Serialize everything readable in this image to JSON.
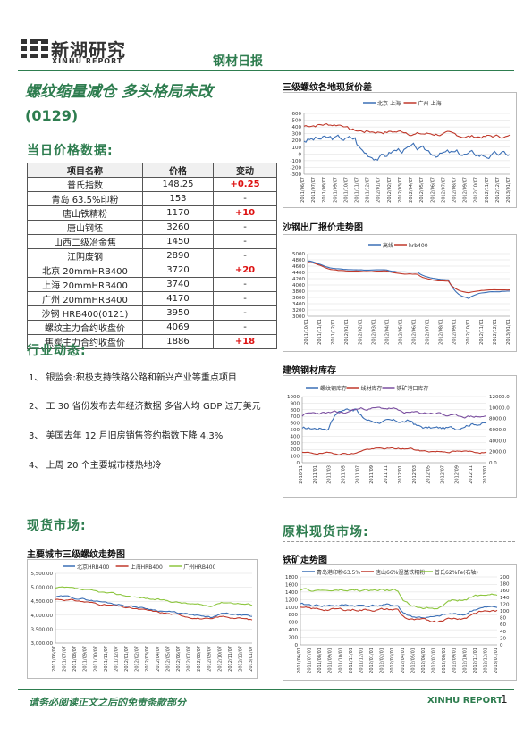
{
  "header": {
    "brand_cn": "新湖研究",
    "brand_en": "XINHU REPORT",
    "report_type": "钢材日报"
  },
  "title": {
    "main": "螺纹缩量减仓  多头格局未改",
    "date": "(0129)"
  },
  "price_section": {
    "heading": "当日价格数据:",
    "columns": [
      "项目名称",
      "价格",
      "变动"
    ],
    "rows": [
      {
        "name": "普氏指数",
        "price": "148.25",
        "change": "+0.25",
        "highlight": true
      },
      {
        "name": "青岛 63.5%印粉",
        "price": "153",
        "change": "-",
        "highlight": false
      },
      {
        "name": "唐山铁精粉",
        "price": "1170",
        "change": "+10",
        "highlight": true
      },
      {
        "name": "唐山钢坯",
        "price": "3260",
        "change": "-",
        "highlight": false
      },
      {
        "name": "山西二级冶金焦",
        "price": "1450",
        "change": "-",
        "highlight": false
      },
      {
        "name": "江阴废钢",
        "price": "2890",
        "change": "-",
        "highlight": false
      },
      {
        "name": "北京 20mmHRB400",
        "price": "3720",
        "change": "+20",
        "highlight": true
      },
      {
        "name": "上海 20mmHRB400",
        "price": "3740",
        "change": "-",
        "highlight": false
      },
      {
        "name": "广州 20mmHRB400",
        "price": "4170",
        "change": "-",
        "highlight": false
      },
      {
        "name": "沙钢 HRB400(0121)",
        "price": "3950",
        "change": "-",
        "highlight": false
      },
      {
        "name": "螺纹主力合约收盘价",
        "price": "4069",
        "change": "-",
        "highlight": false
      },
      {
        "name": "焦炭主力合约收盘价",
        "price": "1886",
        "change": "+18",
        "highlight": true
      }
    ]
  },
  "industry": {
    "heading": "行业动态:",
    "items": [
      "1、 银监会:积极支持铁路公路和新兴产业等重点项目",
      "2、 工 30 省份发布去年经济数据  多省人均 GDP 过万美元",
      "3、 美国去年 12 月旧房销售签约指数下降 4.3%",
      "4、 上周 20 个主要城市楼热地冷"
    ]
  },
  "spot_section": {
    "heading": "现货市场:",
    "chart_title": "主要城市三级螺纹走势图"
  },
  "raw_section": {
    "heading": "原料现货市场:",
    "chart_title": "铁矿走势图"
  },
  "footer": {
    "disclaimer": "请务必阅读正文之后的免责条款部分",
    "brand": "XINHU REPORT",
    "page": "1"
  },
  "chart_data": [
    {
      "type": "line",
      "title": "三级螺纹各地现货价差",
      "series": [
        {
          "name": "北京-上海",
          "color": "#3b6fb6"
        },
        {
          "name": "广州-上海",
          "color": "#c0392b"
        }
      ],
      "ylim": [
        -300,
        600
      ],
      "yticks": [
        "600",
        "500",
        "400",
        "300",
        "200",
        "100",
        "0",
        "-100",
        "-200",
        "-300"
      ],
      "xticks": [
        "2011/06/07",
        "2011/07/07",
        "2011/08/07",
        "2011/09/07",
        "2011/10/07",
        "2011/11/07",
        "2011/12/07",
        "2012/01/07",
        "2012/02/07",
        "2012/03/07",
        "2012/04/07",
        "2012/05/07",
        "2012/06/07",
        "2012/07/07",
        "2012/08/07",
        "2012/09/07",
        "2012/10/07",
        "2012/11/07",
        "2012/12/07",
        "2013/01/07"
      ]
    },
    {
      "type": "line",
      "title": "沙钢出厂报价走势图",
      "series": [
        {
          "name": "高线",
          "color": "#3b6fb6"
        },
        {
          "name": "hrb400",
          "color": "#c0392b"
        }
      ],
      "ylim": [
        3000,
        5000
      ],
      "yticks": [
        "5000",
        "4800",
        "4600",
        "4400",
        "4200",
        "4000",
        "3800",
        "3600",
        "3400",
        "3200",
        "3000"
      ],
      "xticks": [
        "2011/10/01",
        "2011/11/01",
        "2011/12/01",
        "2012/01/01",
        "2012/02/01",
        "2012/03/01",
        "2012/04/01",
        "2012/05/01",
        "2012/06/01",
        "2012/07/01",
        "2012/08/01",
        "2012/09/01",
        "2012/10/01",
        "2012/11/01",
        "2012/12/01",
        "2013/01/01"
      ]
    },
    {
      "type": "line",
      "title": "建筑钢材库存",
      "series": [
        {
          "name": "螺纹钢库存",
          "color": "#3b6fb6"
        },
        {
          "name": "线材库存",
          "color": "#c0392b"
        },
        {
          "name": "铁矿港口库存",
          "color": "#7b4fa0"
        }
      ],
      "ylim_left": [
        0,
        1000
      ],
      "ylim_right": [
        0,
        12000
      ],
      "yticks_left": [
        "1000",
        "900",
        "800",
        "700",
        "600",
        "500",
        "400",
        "300",
        "200",
        "100",
        "0"
      ],
      "yticks_right": [
        "12000.0",
        "10000.0",
        "8000.0",
        "6000.0",
        "4000.0",
        "2000.0",
        "0.0"
      ],
      "xticks": [
        "2010/11",
        "2011/01",
        "2011/03",
        "2011/05",
        "2011/07",
        "2011/09",
        "2011/11",
        "2012/01",
        "2012/03",
        "2012/05",
        "2012/07",
        "2012/09",
        "2012/11",
        "2013/01"
      ]
    },
    {
      "type": "line",
      "title": "主要城市三级螺纹走势图",
      "series": [
        {
          "name": "北京HRB400",
          "color": "#3b6fb6"
        },
        {
          "name": "上海HRB400",
          "color": "#c0392b"
        },
        {
          "name": "广州HRB400",
          "color": "#8dc63f"
        }
      ],
      "ylim": [
        3000,
        5500
      ],
      "yticks": [
        "5,500.00",
        "5,000.00",
        "4,500.00",
        "4,000.00",
        "3,500.00",
        "3,000.00"
      ],
      "xticks": [
        "2011/06/07",
        "2011/07/07",
        "2011/08/07",
        "2011/09/07",
        "2011/10/07",
        "2011/11/07",
        "2011/12/07",
        "2012/01/07",
        "2012/02/07",
        "2012/03/07",
        "2012/04/07",
        "2012/05/07",
        "2012/06/07",
        "2012/07/07",
        "2012/08/07",
        "2012/09/07",
        "2012/10/07",
        "2012/11/07",
        "2012/12/07",
        "2013/01/07"
      ]
    },
    {
      "type": "line",
      "title": "铁矿走势图",
      "series": [
        {
          "name": "青岛港印粉63.5%",
          "color": "#3b6fb6"
        },
        {
          "name": "唐山66%湿基铁精粉",
          "color": "#c0392b"
        },
        {
          "name": "普氏62%Fe(右轴)",
          "color": "#8dc63f"
        }
      ],
      "ylim_left": [
        0,
        1800
      ],
      "ylim_right": [
        0,
        200
      ],
      "yticks_left": [
        "1800",
        "1600",
        "1400",
        "1200",
        "1000",
        "800",
        "600",
        "400",
        "200",
        "0"
      ],
      "yticks_right": [
        "200",
        "180",
        "160",
        "140",
        "120",
        "100",
        "80",
        "60",
        "40",
        "20",
        "0"
      ],
      "xticks": [
        "2011/06/01",
        "2011/07/01",
        "2011/08/01",
        "2011/09/01",
        "2011/10/01",
        "2011/11/01",
        "2011/12/01",
        "2012/01/01",
        "2012/02/01",
        "2012/03/01",
        "2012/04/01",
        "2012/05/01",
        "2012/06/01",
        "2012/07/01",
        "2012/08/01",
        "2012/09/01",
        "2012/10/01",
        "2012/11/01",
        "2012/12/01",
        "2013/01/01"
      ]
    }
  ]
}
